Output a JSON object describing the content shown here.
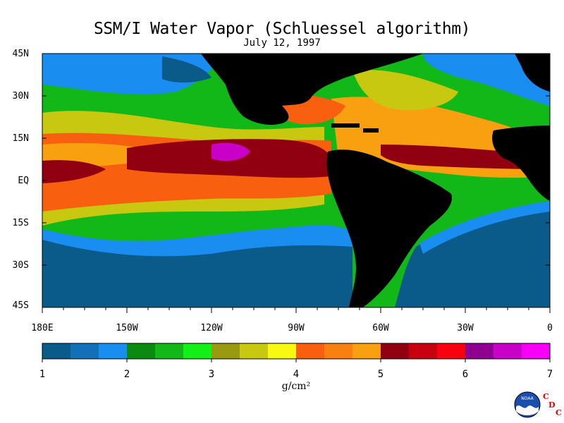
{
  "title": "SSM/I Water Vapor (Schluessel algorithm)",
  "subtitle": "July 12, 1997",
  "latitude_labels": [
    "45N",
    "30N",
    "15N",
    "EQ",
    "15S",
    "30S",
    "45S"
  ],
  "longitude_labels": [
    "180E",
    "150W",
    "120W",
    "90W",
    "60W",
    "30W",
    "0"
  ],
  "colorbar": {
    "min": 1,
    "max": 7,
    "tick_labels": [
      "1",
      "2",
      "3",
      "4",
      "5",
      "6",
      "7"
    ],
    "units": "g/cm²",
    "colors": [
      "#0a5a8a",
      "#1270b8",
      "#1a8ef0",
      "#0a8a10",
      "#12b818",
      "#12f018",
      "#9a9a10",
      "#c8c810",
      "#f8f810",
      "#f86010",
      "#f88010",
      "#f8a010",
      "#900010",
      "#c80010",
      "#f80010",
      "#900090",
      "#c800c8",
      "#f800f8"
    ]
  },
  "map_colors": {
    "land": "#000000",
    "frame": "#000000"
  },
  "logo": {
    "emblem": "NOAA",
    "letters": [
      "C",
      "D",
      "C"
    ]
  }
}
